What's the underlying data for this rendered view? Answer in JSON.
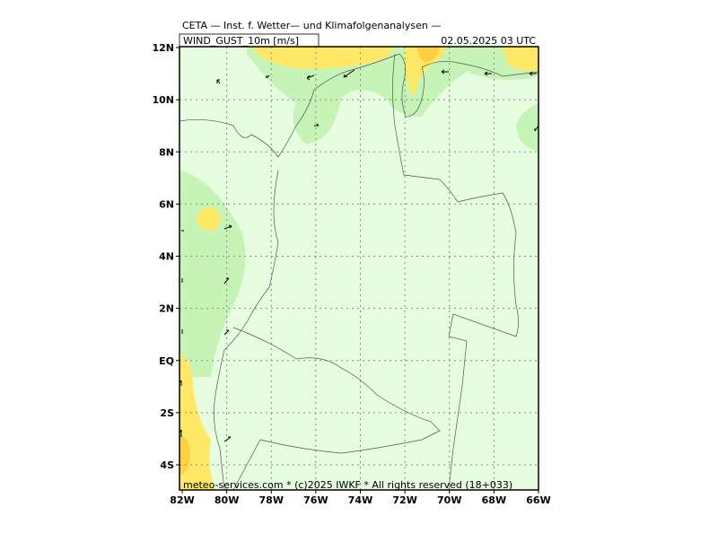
{
  "header": {
    "title": "CETA — Inst. f. Wetter— und Klimafolgenanalysen —",
    "field": "WIND_GUST_10m [m/s]",
    "valid": "02.05.2025 03 UTC"
  },
  "map": {
    "lat_labels": [
      "12N",
      "10N",
      "8N",
      "6N",
      "4N",
      "2N",
      "EQ",
      "2S",
      "4S"
    ],
    "lon_labels": [
      "82W",
      "80W",
      "78W",
      "76W",
      "74W",
      "72W",
      "70W",
      "68W",
      "66W"
    ]
  },
  "footer": "meteo-services.com * (c)2025 IWKF * All rights reserved (18+033)"
}
